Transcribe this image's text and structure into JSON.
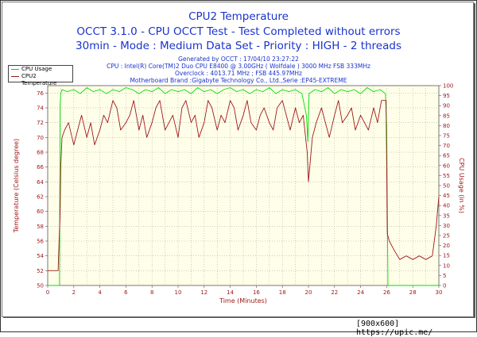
{
  "chart_data": {
    "type": "line",
    "title": "CPU2 Temperature",
    "subtitle": "OCCT 3.1.0 - CPU OCCT Test - Test Completed without errors",
    "subtitle2": "30min - Mode : Medium Data Set - Priority : HIGH - 2 threads",
    "info_lines": [
      "Generated by OCCT : 17/04/10 23:27:22",
      "CPU : Intel(R) Core(TM)2 Duo CPU E8400 @ 3.00GHz ( Wolfdale ) 3000 MHz FSB 333MHz",
      "Overclock : 4013.71 MHz ; FSB 445.97MHz",
      "Motherboard Brand :Gigabyte Technology Co., Ltd.,Serie :EP45-EXTREME"
    ],
    "xlabel": "Time (Minutes)",
    "ylabel": "Temperature (Celsius degree)",
    "y2label": "CPU Usage (in %)",
    "xlim": [
      0,
      30
    ],
    "ylim": [
      50,
      77
    ],
    "y2lim": [
      0,
      100
    ],
    "x_ticks": [
      0,
      2,
      4,
      6,
      8,
      10,
      12,
      14,
      16,
      18,
      20,
      22,
      24,
      26,
      28,
      30
    ],
    "y_ticks": [
      50,
      52,
      54,
      56,
      58,
      60,
      62,
      64,
      66,
      68,
      70,
      72,
      74,
      76
    ],
    "y2_ticks": [
      0,
      5,
      10,
      15,
      20,
      25,
      30,
      35,
      40,
      45,
      50,
      55,
      60,
      65,
      70,
      75,
      80,
      85,
      90,
      95,
      100
    ],
    "grid": true,
    "legend": [
      "CPU Usage",
      "CPU2 Temperature"
    ],
    "legend_position": "top-left",
    "series": [
      {
        "name": "CPU Usage",
        "axis": "right",
        "color": "#00dd00",
        "x": [
          0,
          0.9,
          0.95,
          1.0,
          1.1,
          1.5,
          2.0,
          2.5,
          3.0,
          3.5,
          4.0,
          4.5,
          5.0,
          5.5,
          6.0,
          6.5,
          7.0,
          7.5,
          8.0,
          8.5,
          9.0,
          9.5,
          10.0,
          10.5,
          11.0,
          11.5,
          12.0,
          12.5,
          13.0,
          13.5,
          14.0,
          14.5,
          15.0,
          15.5,
          16.0,
          16.5,
          17.0,
          17.5,
          18.0,
          18.5,
          19.0,
          19.5,
          19.85,
          19.95,
          20.05,
          20.5,
          21.0,
          21.5,
          22.0,
          22.5,
          23.0,
          23.5,
          24.0,
          24.5,
          25.0,
          25.5,
          25.9,
          26.0,
          26.1,
          27.0,
          28.0,
          29.0,
          30.0
        ],
        "values": [
          0,
          0,
          90,
          96,
          98,
          97,
          98,
          96,
          99,
          97,
          98,
          96,
          98,
          97,
          99,
          98,
          96,
          98,
          97,
          99,
          96,
          98,
          97,
          98,
          96,
          99,
          97,
          98,
          96,
          98,
          99,
          97,
          98,
          96,
          98,
          97,
          99,
          96,
          98,
          97,
          98,
          96,
          85,
          72,
          96,
          98,
          97,
          99,
          96,
          98,
          97,
          98,
          96,
          99,
          97,
          98,
          96,
          80,
          0,
          0,
          0,
          0,
          0
        ]
      },
      {
        "name": "CPU2 Temperature",
        "axis": "left",
        "color": "#a01818",
        "x": [
          0,
          0.5,
          0.8,
          0.95,
          1.0,
          1.1,
          1.3,
          1.6,
          2.0,
          2.3,
          2.6,
          3.0,
          3.3,
          3.6,
          4.0,
          4.3,
          4.6,
          5.0,
          5.3,
          5.6,
          6.0,
          6.3,
          6.6,
          7.0,
          7.3,
          7.6,
          8.0,
          8.3,
          8.6,
          9.0,
          9.3,
          9.6,
          10.0,
          10.3,
          10.6,
          11.0,
          11.3,
          11.6,
          12.0,
          12.3,
          12.6,
          13.0,
          13.3,
          13.6,
          14.0,
          14.3,
          14.6,
          15.0,
          15.3,
          15.6,
          16.0,
          16.3,
          16.6,
          17.0,
          17.3,
          17.6,
          18.0,
          18.3,
          18.6,
          19.0,
          19.3,
          19.6,
          19.9,
          20.0,
          20.3,
          20.6,
          21.0,
          21.3,
          21.6,
          22.0,
          22.3,
          22.6,
          23.0,
          23.3,
          23.6,
          24.0,
          24.3,
          24.6,
          25.0,
          25.3,
          25.6,
          25.95,
          26.05,
          26.2,
          26.5,
          27.0,
          27.5,
          28.0,
          28.5,
          29.0,
          29.5,
          29.8,
          30.0
        ],
        "values": [
          52,
          52,
          52,
          60,
          66,
          70,
          71,
          72,
          69,
          71,
          73,
          70,
          72,
          69,
          71,
          73,
          72,
          75,
          74,
          71,
          72,
          73,
          75,
          71,
          73,
          70,
          72,
          74,
          75,
          71,
          72,
          73,
          70,
          74,
          75,
          72,
          73,
          70,
          72,
          75,
          74,
          71,
          73,
          72,
          75,
          74,
          71,
          73,
          75,
          72,
          71,
          73,
          74,
          72,
          71,
          74,
          75,
          73,
          71,
          74,
          72,
          73,
          68,
          64,
          70,
          72,
          74,
          72,
          70,
          73,
          75,
          72,
          73,
          74,
          71,
          73,
          72,
          71,
          74,
          72,
          75,
          75,
          57,
          56,
          55,
          53.5,
          54,
          53.5,
          54,
          53.5,
          54,
          58,
          62
        ]
      }
    ]
  },
  "footer": "[900x600] https://upic.me/"
}
